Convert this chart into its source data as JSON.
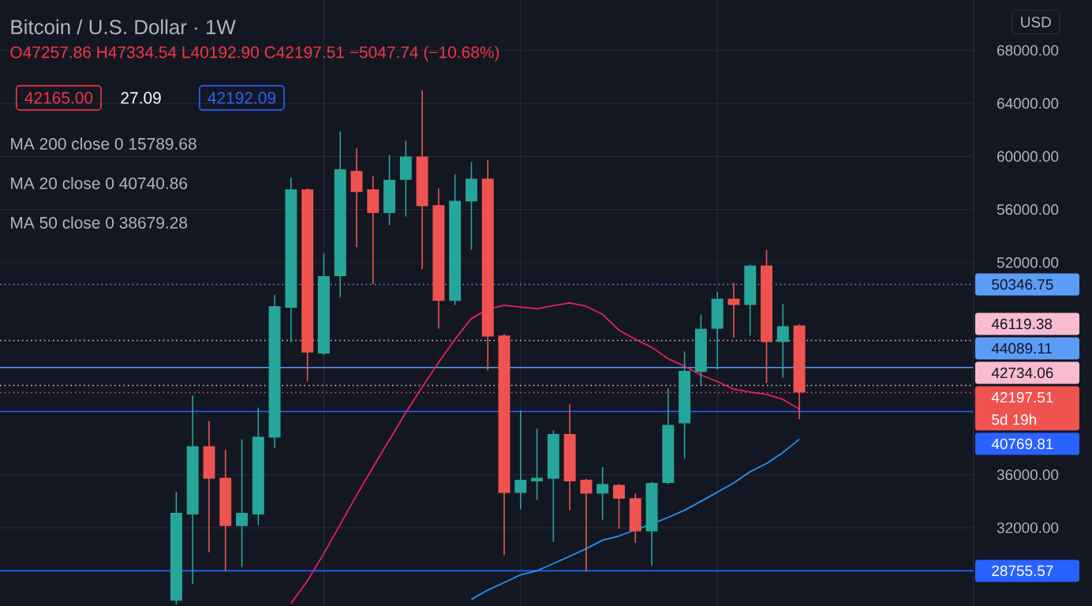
{
  "chart_data": {
    "type": "candlestick",
    "title": "Bitcoin / U.S. Dollar · 1W",
    "categories": [
      null,
      null,
      null,
      null,
      null,
      null,
      null,
      null,
      null,
      null,
      null,
      null,
      null,
      null,
      null,
      null,
      null,
      null,
      null,
      null,
      null,
      null,
      null,
      null,
      null,
      null,
      null,
      null,
      null,
      null,
      null,
      null,
      null,
      null,
      null,
      null,
      null,
      null,
      null
    ],
    "ohlc": [
      [
        26500,
        34700,
        26200,
        33120
      ],
      [
        33000,
        41970,
        27760,
        38150
      ],
      [
        38150,
        40060,
        30140,
        35700
      ],
      [
        35770,
        37880,
        28750,
        32130
      ],
      [
        32130,
        38680,
        29040,
        33120
      ],
      [
        33000,
        41060,
        32200,
        38870
      ],
      [
        38800,
        49580,
        38000,
        48710
      ],
      [
        48600,
        58400,
        46010,
        57520
      ],
      [
        57520,
        57600,
        43040,
        45220
      ],
      [
        45140,
        52680,
        45020,
        50980
      ],
      [
        50980,
        61890,
        49390,
        59040
      ],
      [
        58910,
        60620,
        53160,
        57320
      ],
      [
        57520,
        58510,
        50380,
        55740
      ],
      [
        55740,
        60110,
        54820,
        58240
      ],
      [
        58240,
        61180,
        55470,
        59990
      ],
      [
        59990,
        64990,
        51490,
        56250
      ],
      [
        56330,
        57600,
        47010,
        49110
      ],
      [
        49110,
        58630,
        48800,
        56650
      ],
      [
        56610,
        59580,
        52960,
        58320
      ],
      [
        58320,
        59700,
        43860,
        46420
      ],
      [
        46490,
        46600,
        29940,
        34630
      ],
      [
        34630,
        40860,
        33390,
        35620
      ],
      [
        35500,
        39470,
        34110,
        35770
      ],
      [
        35700,
        39350,
        30940,
        39070
      ],
      [
        39070,
        41330,
        33320,
        35500
      ],
      [
        35620,
        35700,
        28700,
        34580
      ],
      [
        34580,
        36570,
        32610,
        35300
      ],
      [
        35230,
        35300,
        31930,
        34190
      ],
      [
        34230,
        34580,
        30860,
        31730
      ],
      [
        31730,
        35450,
        29150,
        35380
      ],
      [
        35380,
        42530,
        35300,
        39750
      ],
      [
        39870,
        45300,
        37200,
        43830
      ],
      [
        43750,
        48080,
        42760,
        47010
      ],
      [
        47010,
        49790,
        43950,
        49270
      ],
      [
        49270,
        50460,
        46330,
        48800
      ],
      [
        48800,
        51850,
        46490,
        51770
      ],
      [
        51770,
        52960,
        42920,
        46010
      ],
      [
        46010,
        48870,
        43320,
        47200
      ],
      [
        47257.86,
        47334.54,
        40192.9,
        42197.51
      ]
    ],
    "colors": [
      "#26a69a",
      "#26a69a",
      "#ef5350",
      "#ef5350",
      "#26a69a",
      "#26a69a",
      "#26a69a",
      "#26a69a",
      "#ef5350",
      "#26a69a",
      "#26a69a",
      "#ef5350",
      "#ef5350",
      "#26a69a",
      "#26a69a",
      "#ef5350",
      "#ef5350",
      "#26a69a",
      "#26a69a",
      "#ef5350",
      "#ef5350",
      "#26a69a",
      "#26a69a",
      "#26a69a",
      "#ef5350",
      "#ef5350",
      "#26a69a",
      "#ef5350",
      "#ef5350",
      "#26a69a",
      "#26a69a",
      "#26a69a",
      "#26a69a",
      "#26a69a",
      "#ef5350",
      "#26a69a",
      "#ef5350",
      "#26a69a",
      "#ef5350"
    ],
    "series": [
      {
        "type": "line",
        "color": "#e91e63",
        "values": [
          null,
          null,
          null,
          null,
          null,
          null,
          null,
          26300,
          28000,
          30050,
          32250,
          34450,
          36570,
          38630,
          40690,
          42610,
          44460,
          46220,
          47780,
          48480,
          48780,
          48640,
          48510,
          48750,
          48960,
          48700,
          48100,
          46900,
          46210,
          45610,
          44750,
          44180,
          43520,
          43030,
          42450,
          42230,
          42060,
          41680,
          40940
        ]
      },
      {
        "type": "line",
        "color": "#2196f3",
        "values": [
          null,
          null,
          null,
          null,
          null,
          null,
          null,
          null,
          null,
          null,
          null,
          null,
          null,
          null,
          null,
          null,
          null,
          null,
          26600,
          27300,
          27870,
          28450,
          28760,
          29300,
          29850,
          30420,
          31060,
          31380,
          31840,
          32280,
          32780,
          33320,
          33990,
          34680,
          35380,
          36230,
          36840,
          37680,
          38680
        ]
      }
    ],
    "ylim": [
      26100,
      71800
    ],
    "yticks": [
      {
        "value": 32000,
        "label": "32000.00"
      },
      {
        "value": 36000,
        "label": "36000.00"
      },
      {
        "value": 52000,
        "label": "52000.00"
      },
      {
        "value": 56000,
        "label": "56000.00"
      },
      {
        "value": 60000,
        "label": "60000.00"
      },
      {
        "value": 64000,
        "label": "64000.00"
      },
      {
        "value": 68000,
        "label": "68000.00"
      }
    ],
    "grid": true,
    "tick_labels": "y",
    "ref_lines": [
      {
        "axis": "y",
        "value": 50346.75,
        "label": "50346.75",
        "color": "#5b9cf6",
        "line_style": "dotted"
      },
      {
        "axis": "y",
        "value": 46119.38,
        "label": "46119.38",
        "color": "#f8bbd0",
        "line_style": "dotted"
      },
      {
        "axis": "y",
        "value": 44089.11,
        "label": "44089.11",
        "color": "#5b9cf6",
        "line_style": "solid"
      },
      {
        "axis": "y",
        "value": 42734.06,
        "label": "42734.06",
        "color": "#f8bbd0",
        "line_style": "dotted"
      },
      {
        "axis": "y",
        "value": 42197.51,
        "label": "42197.51",
        "color": "#ef5350",
        "line_style": "dotted"
      },
      {
        "axis": "y",
        "value": 40769.81,
        "label": "40769.81",
        "color": "#2962ff",
        "line_style": "solid"
      },
      {
        "axis": "y",
        "value": 28755.57,
        "label": "28755.57",
        "color": "#2962ff",
        "line_style": "solid"
      }
    ],
    "annotations": [
      "O47257.86 H47334.54 L40192.90 C42197.51 −5047.74 (−10.68%)",
      "42165.00",
      "27.09",
      "42192.09",
      "MA 200 close 0 15789.68",
      "MA 20 close 0 40740.86",
      "MA 50 close 0 38679.28",
      "USD",
      "5d 19h"
    ]
  }
}
